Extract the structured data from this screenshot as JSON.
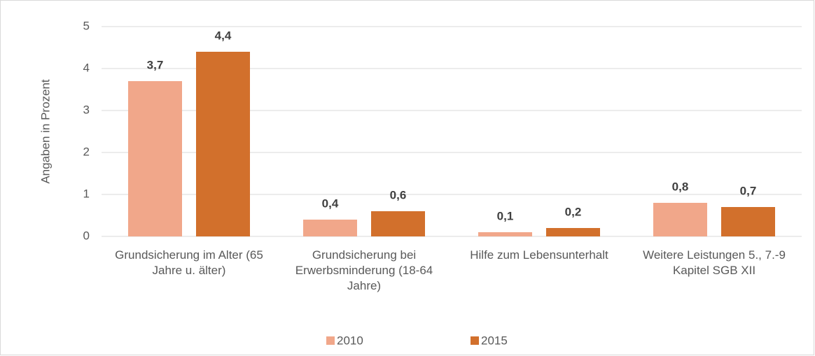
{
  "chart_data": {
    "type": "bar",
    "y_label": "Angaben in Prozent",
    "categories": [
      "Grundsicherung im Alter (65 Jahre u. älter)",
      "Grundsicherung bei Erwerbsminderung (18-64 Jahre)",
      "Hilfe zum Lebensunterhalt",
      "Weitere Leistungen 5., 7.-9 Kapitel SGB XII"
    ],
    "series": [
      {
        "name": "2010",
        "color": "#f1a78a",
        "values": [
          3.7,
          0.4,
          0.1,
          0.8
        ],
        "value_labels": [
          "3,7",
          "0,4",
          "0,1",
          "0,8"
        ]
      },
      {
        "name": "2015",
        "color": "#d2702c",
        "values": [
          4.4,
          0.6,
          0.2,
          0.7
        ],
        "value_labels": [
          "4,4",
          "0,6",
          "0,2",
          "0,7"
        ]
      }
    ],
    "ylim": [
      0,
      5
    ],
    "yticks": [
      0,
      1,
      2,
      3,
      4,
      5
    ],
    "grid": true,
    "legend": "bottom"
  }
}
